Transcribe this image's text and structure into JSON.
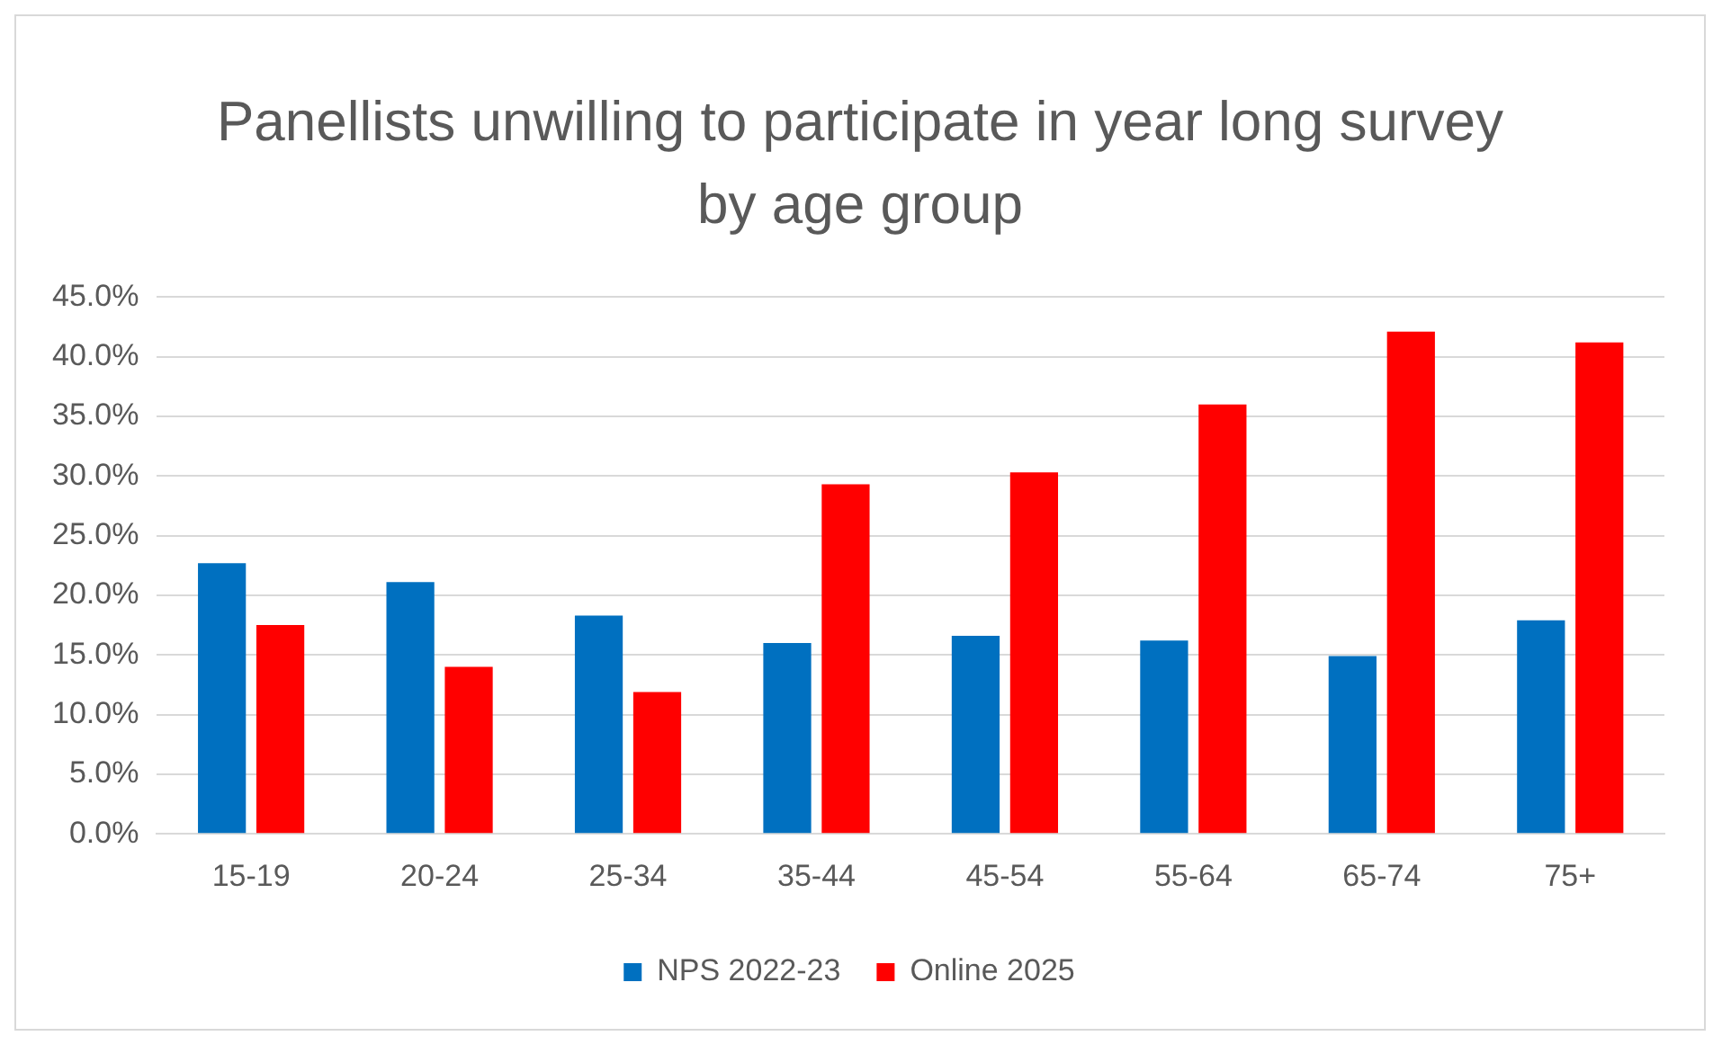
{
  "chart_data": {
    "type": "bar",
    "title": "Panellists unwilling to participate in year long survey by age group",
    "categories": [
      "15-19",
      "20-24",
      "25-34",
      "35-44",
      "45-54",
      "55-64",
      "65-74",
      "75+"
    ],
    "series": [
      {
        "name": "NPS 2022-23",
        "color": "#0070c0",
        "values": [
          22.7,
          21.1,
          18.3,
          16.0,
          16.6,
          16.2,
          14.9,
          17.9
        ]
      },
      {
        "name": "Online 2025",
        "color": "#ff0000",
        "values": [
          17.5,
          14.0,
          11.9,
          29.3,
          30.3,
          36.0,
          42.1,
          41.2
        ]
      }
    ],
    "ylim": [
      0,
      45
    ],
    "yticks": [
      {
        "value": 0,
        "label": "0.0%"
      },
      {
        "value": 5,
        "label": "5.0%"
      },
      {
        "value": 10,
        "label": "10.0%"
      },
      {
        "value": 15,
        "label": "15.0%"
      },
      {
        "value": 20,
        "label": "20.0%"
      },
      {
        "value": 25,
        "label": "25.0%"
      },
      {
        "value": 30,
        "label": "30.0%"
      },
      {
        "value": 35,
        "label": "35.0%"
      },
      {
        "value": 40,
        "label": "40.0%"
      },
      {
        "value": 45,
        "label": "45.0%"
      }
    ],
    "grid": "y",
    "legend": "bottom"
  }
}
